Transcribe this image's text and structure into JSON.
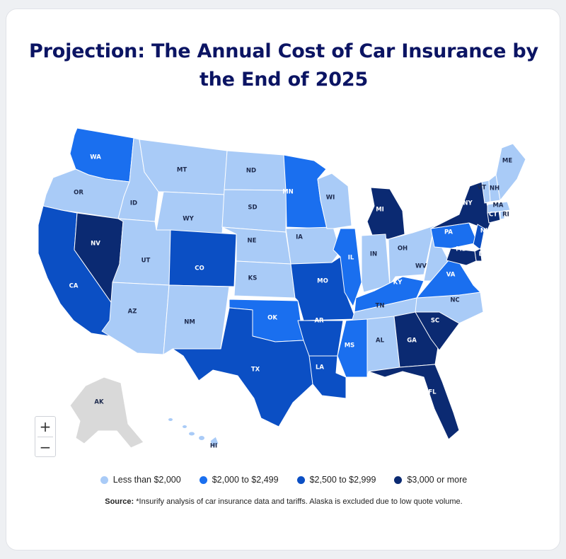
{
  "title": "Projection: The Annual Cost of Car Insurance by the End of 2025",
  "colors": {
    "tier1": "#a9cbf7",
    "tier2": "#1a6fef",
    "tier3": "#0b4fc4",
    "tier4": "#0b2a72",
    "excluded": "#d9d9d9"
  },
  "zoom": {
    "in": "+",
    "out": "−"
  },
  "legend": [
    {
      "label": "Less than $2,000",
      "tier": "tier1"
    },
    {
      "label": "$2,000 to $2,499",
      "tier": "tier2"
    },
    {
      "label": "$2,500 to $2,999",
      "tier": "tier3"
    },
    {
      "label": "$3,000 or more",
      "tier": "tier4"
    }
  ],
  "source": {
    "label": "Source:",
    "text": "*Insurify analysis of car insurance data and tariffs. Alaska is excluded due to low quote volume."
  },
  "states": [
    {
      "code": "WA",
      "tier": "tier2"
    },
    {
      "code": "OR",
      "tier": "tier1"
    },
    {
      "code": "CA",
      "tier": "tier3"
    },
    {
      "code": "NV",
      "tier": "tier4"
    },
    {
      "code": "ID",
      "tier": "tier1"
    },
    {
      "code": "MT",
      "tier": "tier1"
    },
    {
      "code": "WY",
      "tier": "tier1"
    },
    {
      "code": "UT",
      "tier": "tier1"
    },
    {
      "code": "AZ",
      "tier": "tier1"
    },
    {
      "code": "CO",
      "tier": "tier3"
    },
    {
      "code": "NM",
      "tier": "tier1"
    },
    {
      "code": "ND",
      "tier": "tier1"
    },
    {
      "code": "SD",
      "tier": "tier1"
    },
    {
      "code": "NE",
      "tier": "tier1"
    },
    {
      "code": "KS",
      "tier": "tier1"
    },
    {
      "code": "OK",
      "tier": "tier2"
    },
    {
      "code": "TX",
      "tier": "tier3"
    },
    {
      "code": "MN",
      "tier": "tier2"
    },
    {
      "code": "IA",
      "tier": "tier1"
    },
    {
      "code": "MO",
      "tier": "tier3"
    },
    {
      "code": "AR",
      "tier": "tier3"
    },
    {
      "code": "LA",
      "tier": "tier3"
    },
    {
      "code": "WI",
      "tier": "tier1"
    },
    {
      "code": "IL",
      "tier": "tier2"
    },
    {
      "code": "MI",
      "tier": "tier4"
    },
    {
      "code": "IN",
      "tier": "tier1"
    },
    {
      "code": "OH",
      "tier": "tier1"
    },
    {
      "code": "KY",
      "tier": "tier2"
    },
    {
      "code": "TN",
      "tier": "tier1"
    },
    {
      "code": "MS",
      "tier": "tier2"
    },
    {
      "code": "AL",
      "tier": "tier1"
    },
    {
      "code": "GA",
      "tier": "tier4"
    },
    {
      "code": "FL",
      "tier": "tier4"
    },
    {
      "code": "SC",
      "tier": "tier4"
    },
    {
      "code": "NC",
      "tier": "tier1"
    },
    {
      "code": "VA",
      "tier": "tier2"
    },
    {
      "code": "WV",
      "tier": "tier1"
    },
    {
      "code": "PA",
      "tier": "tier2"
    },
    {
      "code": "NY",
      "tier": "tier4"
    },
    {
      "code": "NJ",
      "tier": "tier3"
    },
    {
      "code": "DE",
      "tier": "tier4"
    },
    {
      "code": "MD",
      "tier": "tier4"
    },
    {
      "code": "CT",
      "tier": "tier4"
    },
    {
      "code": "RI",
      "tier": "tier1"
    },
    {
      "code": "MA",
      "tier": "tier1"
    },
    {
      "code": "VT",
      "tier": "tier1"
    },
    {
      "code": "NH",
      "tier": "tier1"
    },
    {
      "code": "ME",
      "tier": "tier1"
    },
    {
      "code": "AK",
      "tier": "excluded"
    },
    {
      "code": "HI",
      "tier": "tier1"
    }
  ]
}
